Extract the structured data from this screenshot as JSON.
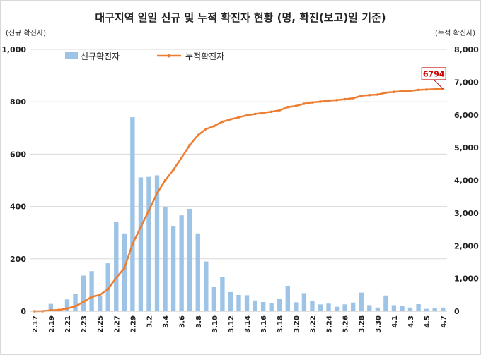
{
  "chart_data": {
    "type": "bar+line",
    "title": "대구지역 일일 신규 및 누적 확진자 현황 (명, 확진(보고)일 기준)",
    "y_left_label": "(신규 확진자)",
    "y_right_label": "(누적 확진자)",
    "ylim_left": [
      0,
      1000
    ],
    "ylim_right": [
      0,
      8000
    ],
    "y_left_ticks": [
      "0",
      "200",
      "400",
      "600",
      "800",
      "1,000"
    ],
    "y_right_ticks": [
      "0",
      "1,000",
      "2,000",
      "3,000",
      "4,000",
      "5,000",
      "6,000",
      "7,000",
      "8,000"
    ],
    "categories": [
      "2.17",
      "2.18",
      "2.19",
      "2.20",
      "2.21",
      "2.22",
      "2.23",
      "2.24",
      "2.25",
      "2.26",
      "2.27",
      "2.28",
      "2.29",
      "3.1",
      "3.2",
      "3.3",
      "3.4",
      "3.5",
      "3.6",
      "3.7",
      "3.8",
      "3.9",
      "3.10",
      "3.11",
      "3.12",
      "3.13",
      "3.14",
      "3.15",
      "3.16",
      "3.17",
      "3.18",
      "3.19",
      "3.20",
      "3.21",
      "3.22",
      "3.23",
      "3.24",
      "3.25",
      "3.26",
      "3.27",
      "3.28",
      "3.29",
      "3.30",
      "3.31",
      "4.1",
      "4.2",
      "4.3",
      "4.4",
      "4.5",
      "4.6",
      "4.7"
    ],
    "x_tick_labels": [
      "2.17",
      "2.19",
      "2.21",
      "2.23",
      "2.25",
      "2.27",
      "2.29",
      "3.2",
      "3.4",
      "3.6",
      "3.8",
      "3.10",
      "3.12",
      "3.14",
      "3.16",
      "3.18",
      "3.20",
      "3.22",
      "3.24",
      "3.26",
      "3.28",
      "3.30",
      "4.1",
      "4.3",
      "4.5",
      "4.7"
    ],
    "series": [
      {
        "name": "신규확진자",
        "kind": "bar",
        "axis": "left",
        "color": "#9dc3e6",
        "values": [
          0,
          1,
          28,
          9,
          45,
          66,
          136,
          153,
          57,
          183,
          340,
          297,
          741,
          511,
          513,
          519,
          398,
          326,
          366,
          391,
          297,
          190,
          92,
          131,
          73,
          62,
          61,
          41,
          35,
          32,
          46,
          97,
          34,
          69,
          39,
          26,
          29,
          17,
          26,
          33,
          71,
          23,
          14,
          60,
          23,
          20,
          14,
          27,
          9,
          13,
          14
        ]
      },
      {
        "name": "누적확진자",
        "kind": "line",
        "axis": "right",
        "color": "#ed7d31",
        "values": [
          1,
          2,
          30,
          39,
          84,
          150,
          286,
          439,
          496,
          679,
          1019,
          1316,
          2057,
          2568,
          3081,
          3600,
          3998,
          4324,
          4690,
          5081,
          5378,
          5568,
          5660,
          5791,
          5864,
          5926,
          5987,
          6028,
          6063,
          6095,
          6141,
          6238,
          6272,
          6341,
          6380,
          6406,
          6435,
          6452,
          6478,
          6511,
          6582,
          6605,
          6619,
          6679,
          6702,
          6722,
          6736,
          6763,
          6772,
          6785,
          6794
        ]
      }
    ],
    "annotation": {
      "label": "6794",
      "value": 6794,
      "category": "4.7",
      "color": "#d00000"
    },
    "grid": {
      "horizontal": true,
      "vertical": false,
      "color": "#d9d9d9"
    },
    "legend": "top-left"
  }
}
